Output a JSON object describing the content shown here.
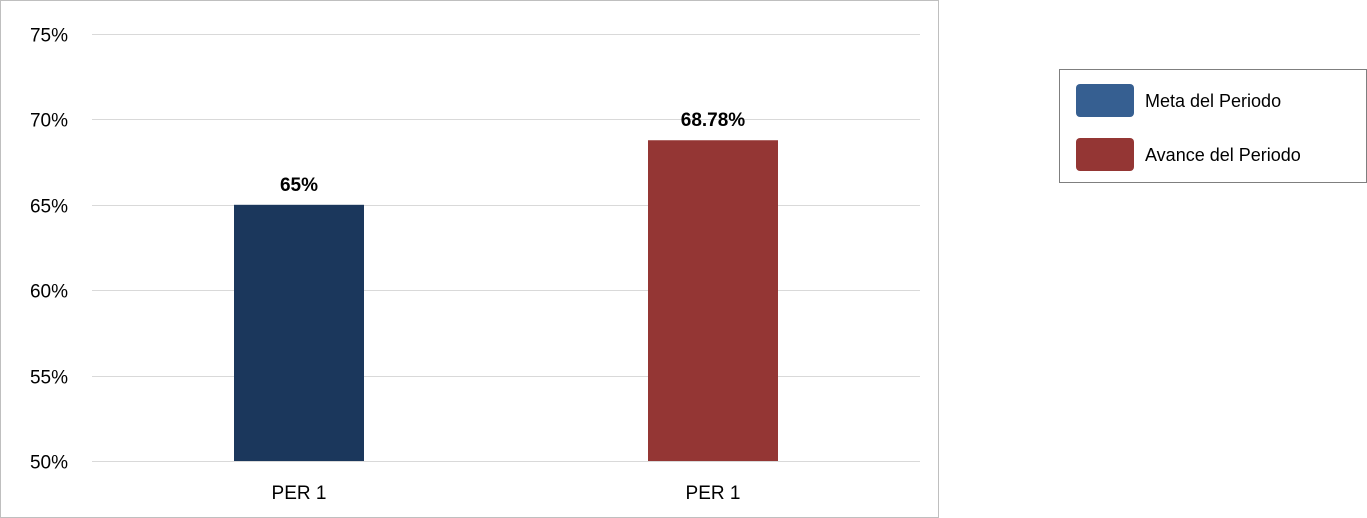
{
  "chart_data": {
    "type": "bar",
    "categories": [
      "PER 1",
      "PER 1"
    ],
    "values": [
      65,
      68.78
    ],
    "data_labels": [
      "65%",
      "68.78%"
    ],
    "bar_colors": [
      "#1b375c",
      "#943634"
    ],
    "ylim": [
      50,
      75
    ],
    "yticks": [
      50,
      55,
      60,
      65,
      70,
      75
    ],
    "ytick_labels": [
      "50%",
      "55%",
      "60%",
      "65%",
      "70%",
      "75%"
    ],
    "grid": true,
    "legend": {
      "placement": "right",
      "entries": [
        {
          "label": "Meta del Periodo",
          "color": "#365f91"
        },
        {
          "label": "Avance del Periodo",
          "color": "#943634"
        }
      ]
    }
  }
}
